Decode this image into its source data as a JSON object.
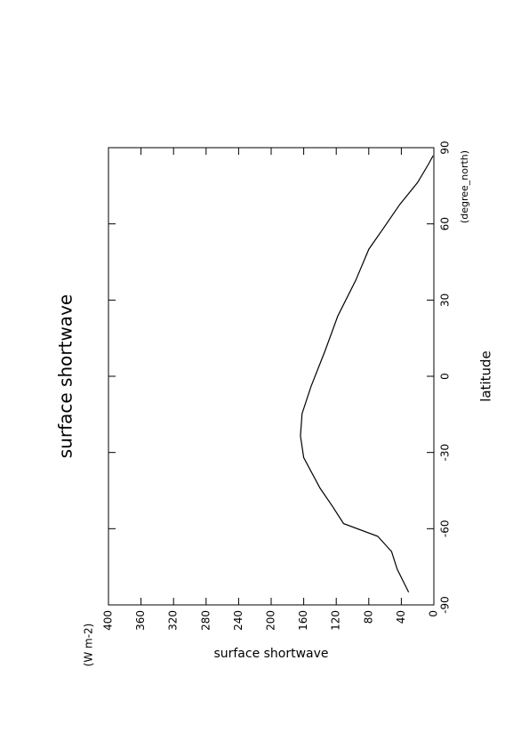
{
  "chart_data": {
    "type": "line",
    "title": "surface shortwave",
    "x_label": "latitude",
    "x_unit": "(degree_north)",
    "y_label": "surface shortwave",
    "y_unit": "(W m-2)",
    "x": [
      -85,
      -76,
      -69,
      -63,
      -58,
      -51.5,
      -44,
      -32,
      -23.5,
      -14.7,
      -4,
      9.8,
      23.8,
      37.8,
      50,
      57.8,
      67.6,
      76.3,
      83.3,
      86.8
    ],
    "series": [
      {
        "name": "surface shortwave",
        "color": "#000000",
        "values": [
          31,
          45,
          52,
          69,
          111,
          124,
          140,
          160,
          164,
          162,
          151,
          134,
          118,
          96,
          80,
          63,
          42,
          20,
          7,
          1
        ]
      }
    ],
    "xlim": [
      -90,
      90
    ],
    "xticks": [
      -90,
      -60,
      -30,
      0,
      30,
      60,
      90
    ],
    "ylim": [
      0,
      400
    ],
    "yticks": [
      0,
      40,
      80,
      120,
      160,
      200,
      240,
      280,
      320,
      360,
      400
    ]
  }
}
